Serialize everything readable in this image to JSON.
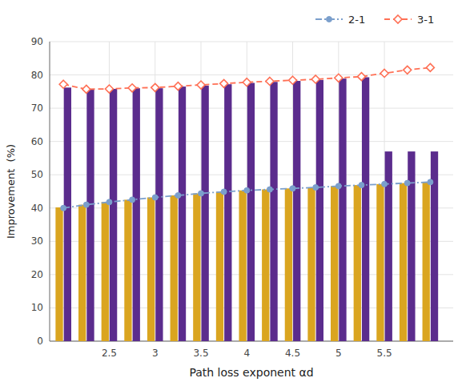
{
  "chart_data": {
    "type": "bar",
    "xlabel": "Path loss exponent αd",
    "ylabel": "Improvement  (%)",
    "x": [
      2.0,
      2.25,
      2.5,
      2.75,
      3.0,
      3.25,
      3.5,
      3.75,
      4.0,
      4.25,
      4.5,
      4.75,
      5.0,
      5.25,
      5.5,
      5.75,
      6.0
    ],
    "series": [
      {
        "type": "bar",
        "color": "#DAA520",
        "values": [
          40.2,
          41.0,
          41.8,
          42.5,
          43.2,
          43.8,
          44.4,
          44.9,
          45.3,
          45.6,
          45.9,
          46.2,
          46.6,
          46.9,
          47.2,
          47.5,
          47.8
        ]
      },
      {
        "type": "bar",
        "color": "#5B2C8D",
        "values": [
          76.2,
          75.8,
          75.8,
          76.0,
          76.0,
          76.5,
          76.8,
          77.2,
          77.6,
          77.9,
          78.2,
          78.5,
          78.9,
          79.3,
          57.0,
          57.0,
          57.0
        ]
      },
      {
        "name": "2-1",
        "type": "line",
        "color": "#7B9FCC",
        "marker": "circle",
        "line_style": "dashdot",
        "values": [
          40.0,
          41.0,
          41.8,
          42.5,
          43.2,
          43.8,
          44.4,
          44.9,
          45.3,
          45.6,
          45.9,
          46.2,
          46.6,
          46.9,
          47.2,
          47.5,
          47.8
        ]
      },
      {
        "name": "3-1",
        "type": "line",
        "color": "#FF7055",
        "marker": "diamond",
        "line_style": "dashed",
        "values": [
          77.2,
          75.7,
          75.8,
          76.1,
          76.2,
          76.6,
          77.0,
          77.4,
          77.8,
          78.1,
          78.4,
          78.7,
          79.1,
          79.5,
          80.5,
          81.5,
          82.2
        ]
      }
    ],
    "xlim": [
      1.85,
      6.25
    ],
    "xticks": [
      2.5,
      3,
      3.5,
      4,
      4.5,
      5,
      5.5
    ],
    "ylim": [
      0,
      90
    ],
    "yticks": [
      0,
      10,
      20,
      30,
      40,
      50,
      60,
      70,
      80,
      90
    ],
    "grid": true,
    "legend": "upper right"
  }
}
